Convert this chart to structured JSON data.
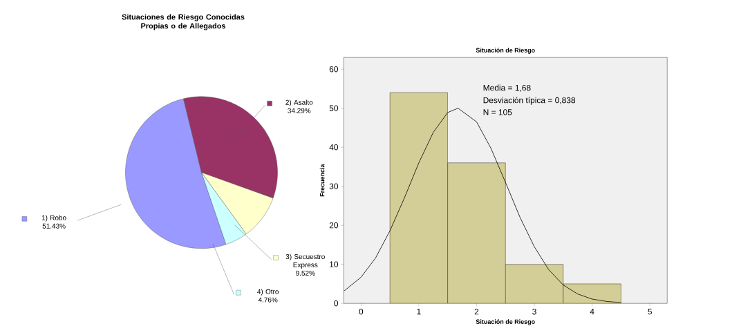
{
  "chart_data": [
    {
      "type": "pie",
      "title": "Situaciones de Riesgo Conocidas Propias o de Allegados",
      "categories": [
        "1) Robo",
        "2) Asalto",
        "3) Secuestro Express",
        "4) Otro"
      ],
      "values": [
        51.43,
        34.29,
        9.52,
        4.76
      ],
      "colors": [
        "#9999ff",
        "#993366",
        "#ffffcc",
        "#ccffff"
      ],
      "value_labels": [
        "51.43%",
        "34.29%",
        "9.52%",
        "4.76%"
      ],
      "legend": "bottom left"
    },
    {
      "type": "histogram",
      "title": "Situación de Riesgo",
      "xlabel": "Situación de Riesgo",
      "ylabel": "Frecuencia",
      "bins": [
        0.5,
        1.5,
        2.5,
        3.5,
        4.5
      ],
      "values": [
        54,
        36,
        10,
        5
      ],
      "color": "#d3ce97",
      "series": [
        {
          "type": "line",
          "color": "#000000",
          "x": [
            -0.3,
            0,
            0.25,
            0.5,
            0.75,
            1.0,
            1.25,
            1.5,
            1.68,
            2.0,
            2.25,
            2.5,
            2.75,
            3.0,
            3.25,
            3.5,
            3.75,
            4.0,
            4.25,
            4.5
          ],
          "values": [
            3.1,
            6.7,
            11.6,
            18.6,
            27.0,
            36.0,
            43.8,
            48.9,
            50,
            46.5,
            39.7,
            31.0,
            22.1,
            14.5,
            8.6,
            4.7,
            2.4,
            1.1,
            0.5,
            0.2
          ]
        }
      ],
      "xlim": [
        -0.3,
        5.3
      ],
      "ylim": [
        0,
        63
      ],
      "xticks": [
        0,
        1,
        2,
        3,
        4,
        5
      ],
      "yticks": [
        0,
        10,
        20,
        30,
        40,
        50,
        60
      ],
      "annotations": [
        "Media = 1,68",
        "Desviación típica = 0,838",
        "N = 105"
      ]
    }
  ]
}
